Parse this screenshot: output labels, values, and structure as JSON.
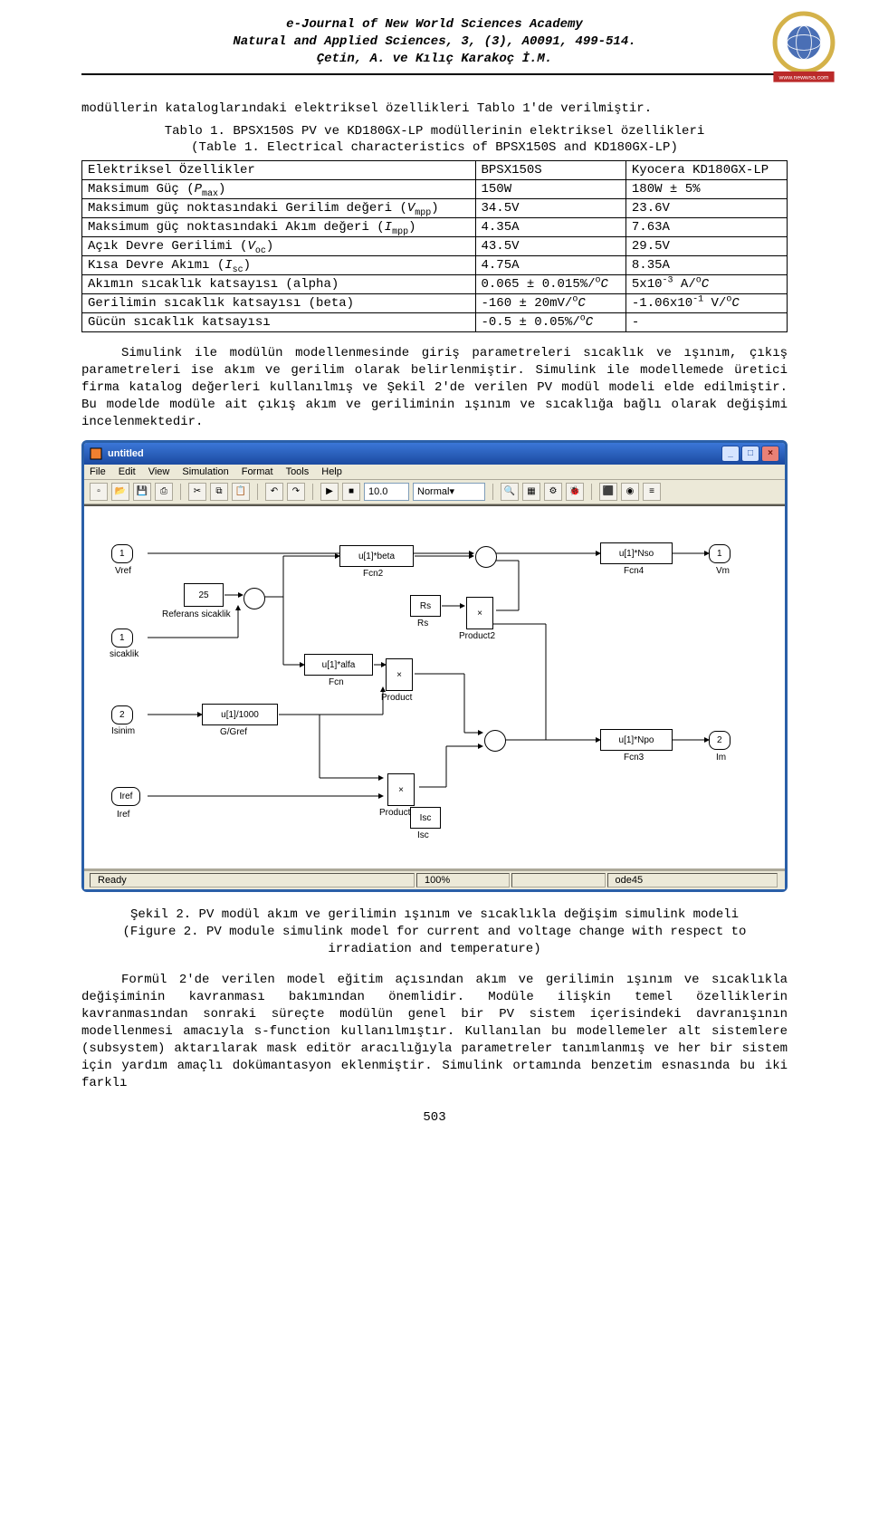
{
  "header": {
    "line1": "e-Journal of New World Sciences Academy",
    "line2": "Natural and Applied Sciences, 3, (3), A0091, 499-514.",
    "line3": "Çetin, A. ve Kılıç Karakoç İ.M.",
    "logo_colors": {
      "ring": "#d4b24a",
      "globe": "#4a6fb5",
      "ribbon": "#bb2a2a"
    },
    "logo_url_text": "www.newwsa.com"
  },
  "intro_para": "modüllerin kataloglarındaki elektriksel özellikleri Tablo 1'de verilmiştir.",
  "table_caption_1": "Tablo 1. BPSX150S PV ve KD180GX-LP modüllerinin elektriksel özellikleri",
  "table_caption_2": "(Table 1. Electrical characteristics of BPSX150S and KD180GX-LP)",
  "table": {
    "header": [
      "Elektriksel Özellikler",
      "BPSX150S",
      "Kyocera KD180GX-LP"
    ],
    "rows": [
      {
        "label_html": "Maksimum Güç (<i>P</i><sub>max</sub>)",
        "c1": "150W",
        "c2": "180W ± 5%"
      },
      {
        "label_html": "Maksimum güç noktasındaki Gerilim değeri (<i>V</i><sub>mpp</sub>)",
        "c1": "34.5V",
        "c2": "23.6V"
      },
      {
        "label_html": "Maksimum güç noktasındaki Akım değeri (<i>I</i><sub>mpp</sub>)",
        "c1": "4.35A",
        "c2": "7.63A"
      },
      {
        "label_html": "Açık Devre Gerilimi (<i>V</i><sub>oc</sub>)",
        "c1": "43.5V",
        "c2": "29.5V"
      },
      {
        "label_html": "Kısa Devre Akımı (<i>I</i><sub>sc</sub>)",
        "c1": "4.75A",
        "c2": "8.35A"
      },
      {
        "label_html": "Akımın sıcaklık katsayısı (alpha)",
        "c1": "0.065 ± 0.015%/<sup>o</sup><i>C</i>",
        "c2": "5x10<sup>-3</sup> A/<sup>o</sup><i>C</i>"
      },
      {
        "label_html": "Gerilimin sıcaklık katsayısı (beta)",
        "c1": "-160 ± 20mV/<sup>o</sup><i>C</i>",
        "c2": "-1.06x10<sup>-1</sup> V/<sup>o</sup><i>C</i>"
      },
      {
        "label_html": "Gücün sıcaklık katsayısı",
        "c1": "-0.5 ± 0.05%/<sup>o</sup><i>C</i>",
        "c2": "-"
      }
    ]
  },
  "para2": "Simulink ile modülün modellenmesinde giriş parametreleri sıcaklık ve ışınım, çıkış parametreleri ise akım ve gerilim olarak belirlenmiştir. Simulink ile modellemede üretici firma katalog değerleri kullanılmış ve Şekil 2'de verilen PV modül modeli elde edilmiştir. Bu modelde modüle ait çıkış akım ve geriliminin ışınım ve sıcaklığa bağlı olarak değişimi incelenmektedir.",
  "simulink": {
    "window_title": "untitled",
    "menus": [
      "File",
      "Edit",
      "View",
      "Simulation",
      "Format",
      "Tools",
      "Help"
    ],
    "toolbar": {
      "stop_time": "10.0",
      "mode": "Normal"
    },
    "blocks": {
      "in_vref": "Vref",
      "const_25": "25",
      "const_25_label": "Referans sicaklik",
      "in_sicaklik": "sicaklik",
      "in_isinim": "Isinim",
      "in_iref": "Iref",
      "label_iref": "Iref",
      "fcn_alfa": "u[1]*alfa",
      "fcn_alfa_label": "Fcn",
      "fcn_1000": "u[1]/1000",
      "fcn_1000_label": "G/Gref",
      "fcn_beta": "u[1]*beta",
      "fcn_beta_label": "Fcn2",
      "rs": "Rs",
      "rs_label": "Rs",
      "product": "×",
      "product_label": "Product",
      "product1_label": "Product1",
      "product2_label": "Product2",
      "isc": "Isc",
      "isc_label": "Isc",
      "nso": "u[1]*Nso",
      "nso_label": "Fcn4",
      "npo": "u[1]*Npo",
      "npo_label": "Fcn3",
      "out_vm": "Vm",
      "out_im": "Im",
      "out1": "1",
      "out2": "2",
      "in1": "1",
      "in2": "2",
      "port1": "1",
      "port2": "2"
    },
    "statusbar": {
      "ready": "Ready",
      "zoom": "100%",
      "solver": "ode45"
    }
  },
  "fig_caption_1": "Şekil 2. PV modül akım ve gerilimin ışınım ve sıcaklıkla değişim simulink modeli",
  "fig_caption_2": "(Figure 2. PV module simulink model for current and voltage change with respect to irradiation and temperature)",
  "para3": "Formül 2'de verilen model eğitim açısından akım ve gerilimin ışınım ve sıcaklıkla değişiminin kavranması bakımından önemlidir. Modüle ilişkin temel özelliklerin kavranmasından sonraki süreçte modülün genel bir PV sistem içerisindeki davranışının modellenmesi amacıyla s-function kullanılmıştır. Kullanılan bu modellemeler alt sistemlere (subsystem) aktarılarak mask editör aracılığıyla parametreler tanımlanmış ve her bir sistem için yardım amaçlı dokümantasyon eklenmiştir. Simulink ortamında benzetim esnasında bu iki farklı",
  "page_number": "503"
}
